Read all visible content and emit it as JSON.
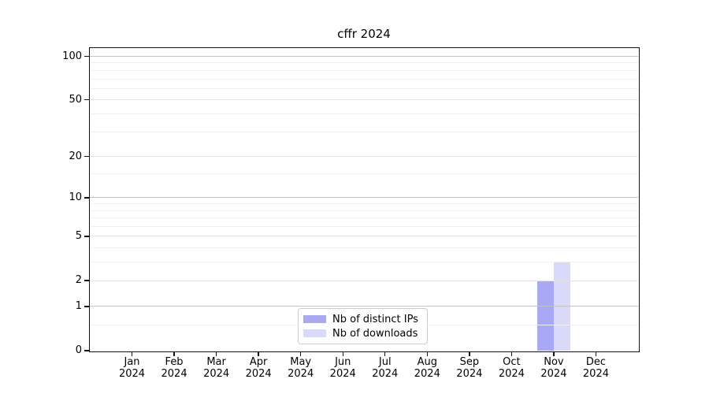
{
  "chart_data": {
    "type": "bar",
    "title": "cffr 2024",
    "xlabel": "",
    "ylabel": "",
    "x_tick_labels": [
      [
        "Jan",
        "2024"
      ],
      [
        "Feb",
        "2024"
      ],
      [
        "Mar",
        "2024"
      ],
      [
        "Apr",
        "2024"
      ],
      [
        "May",
        "2024"
      ],
      [
        "Jun",
        "2024"
      ],
      [
        "Jul",
        "2024"
      ],
      [
        "Aug",
        "2024"
      ],
      [
        "Sep",
        "2024"
      ],
      [
        "Oct",
        "2024"
      ],
      [
        "Nov",
        "2024"
      ],
      [
        "Dec",
        "2024"
      ]
    ],
    "series": [
      {
        "name": "Nb of distinct IPs",
        "color": "#a8a8f5",
        "values": [
          0,
          0,
          0,
          0,
          0,
          0,
          0,
          0,
          0,
          0,
          2,
          0
        ]
      },
      {
        "name": "Nb of downloads",
        "color": "#d9d9fa",
        "values": [
          0,
          0,
          0,
          0,
          0,
          0,
          0,
          0,
          0,
          0,
          3,
          0
        ]
      }
    ],
    "y_scale": "log10(1+y)",
    "y_major_ticks": [
      0,
      1,
      2,
      5,
      10,
      20,
      50,
      100
    ],
    "y_emphasized_gridlines": [
      1,
      10,
      100
    ],
    "y_minor_gridlines": [
      0.5,
      3,
      4,
      6,
      7,
      8,
      9,
      15,
      30,
      40,
      60,
      70,
      80,
      90
    ],
    "ylim": [
      0,
      114
    ],
    "grid": true,
    "legend_position": "lower center"
  },
  "colors": {
    "spine": "#111111",
    "grid_emphasized": "#c3c3c3",
    "grid_major": "#e3e3e3",
    "grid_minor": "#efefef",
    "text": "#000000",
    "legend_border": "#cccccc",
    "background": "#ffffff"
  }
}
